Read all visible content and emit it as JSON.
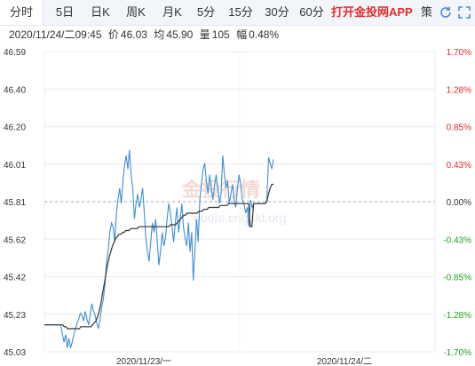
{
  "tabs": [
    {
      "label": "分时",
      "active": true
    },
    {
      "label": "5日",
      "active": false
    },
    {
      "label": "日K",
      "active": false
    },
    {
      "label": "周K",
      "active": false
    },
    {
      "label": "月K",
      "active": false
    },
    {
      "label": "5分",
      "active": false
    },
    {
      "label": "15分",
      "active": false
    },
    {
      "label": "30分",
      "active": false
    },
    {
      "label": "60分",
      "active": false
    }
  ],
  "promo_label": "打开金投网APP",
  "extra_label": "策",
  "icons": [
    "circle-arrow-icon",
    "fullscreen-icon"
  ],
  "info": {
    "datetime": "2020/11/24/二09:45",
    "price_label": "价",
    "price": "46.03",
    "avg_label": "均",
    "avg": "45.90",
    "vol_label": "量",
    "vol": "105",
    "amp_label": "幅",
    "amp": "0.48%"
  },
  "watermark": {
    "text": "金投行情",
    "url": "quote.cngold.org"
  },
  "colors": {
    "up": "#e62b2b",
    "down": "#1fa21f",
    "price_line": "#3d8fd6",
    "avg_line": "#333333",
    "grid": "#e9ecef"
  },
  "chart_data": {
    "type": "line",
    "y_left_ticks": [
      "46.59",
      "46.40",
      "46.20",
      "46.01",
      "45.81",
      "45.62",
      "45.42",
      "45.23",
      "45.03"
    ],
    "y_right_ticks": [
      "1.70%",
      "1.28%",
      "0.85%",
      "0.43%",
      "0.00%",
      "-0.43%",
      "-0.85%",
      "-1.28%",
      "-1.70%"
    ],
    "ylim": [
      45.03,
      46.59
    ],
    "prev_close": 45.81,
    "x_labels": [
      "2020/11/23/一",
      "2020/11/24/二"
    ],
    "series": [
      {
        "values": [
          45.17,
          45.17,
          45.17,
          45.17,
          45.17,
          45.17,
          45.17,
          45.17,
          45.17,
          45.17,
          45.17,
          45.12,
          45.08,
          45.12,
          45.05,
          45.1,
          45.05,
          45.08,
          45.12,
          45.15,
          45.18,
          45.2,
          45.23,
          45.22,
          45.19,
          45.24,
          45.2,
          45.17,
          45.22,
          45.28,
          45.24,
          45.22,
          45.18,
          45.15,
          45.2,
          45.26,
          45.3,
          45.38,
          45.5,
          45.56,
          45.65,
          45.7,
          45.68,
          45.6,
          45.75,
          45.82,
          45.88,
          45.8,
          45.92,
          46.0,
          46.05,
          45.98,
          46.08,
          45.95,
          45.88,
          45.72,
          45.8,
          45.85,
          45.78,
          45.82,
          45.88,
          45.76,
          45.62,
          45.55,
          45.5,
          45.6,
          45.7,
          45.65,
          45.72,
          45.6,
          45.48,
          45.55,
          45.65,
          45.58,
          45.62,
          45.72,
          45.8,
          45.75,
          45.68,
          45.6,
          45.7,
          45.78,
          45.65,
          45.72,
          45.8,
          45.68,
          45.62,
          45.58,
          45.7,
          45.55,
          45.65,
          45.4,
          45.55,
          45.72,
          45.6,
          45.82,
          45.9,
          45.98,
          46.01,
          45.92,
          45.85,
          45.95,
          45.88,
          45.82,
          45.9,
          45.95,
          45.88,
          45.8,
          45.85,
          46.05,
          45.95,
          45.88,
          45.92,
          45.8,
          45.85,
          45.9,
          45.82,
          45.78,
          45.88,
          45.95,
          45.9,
          45.82,
          45.8,
          45.75,
          45.78,
          45.68,
          45.82,
          45.78,
          45.8,
          45.8,
          45.8,
          45.8,
          45.8,
          45.8,
          45.8,
          45.8,
          45.82,
          46.04,
          46.01,
          45.98,
          46.03
        ]
      },
      {
        "values": [
          45.17,
          45.17,
          45.17,
          45.17,
          45.17,
          45.17,
          45.17,
          45.17,
          45.17,
          45.17,
          45.17,
          45.17,
          45.16,
          45.16,
          45.15,
          45.15,
          45.15,
          45.15,
          45.15,
          45.15,
          45.15,
          45.15,
          45.16,
          45.16,
          45.16,
          45.16,
          45.16,
          45.16,
          45.16,
          45.17,
          45.18,
          45.19,
          45.21,
          45.24,
          45.28,
          45.33,
          45.38,
          45.43,
          45.48,
          45.52,
          45.55,
          45.58,
          45.6,
          45.62,
          45.63,
          45.64,
          45.64,
          45.65,
          45.65,
          45.66,
          45.66,
          45.66,
          45.67,
          45.67,
          45.67,
          45.67,
          45.67,
          45.68,
          45.68,
          45.68,
          45.68,
          45.68,
          45.68,
          45.68,
          45.68,
          45.68,
          45.68,
          45.68,
          45.68,
          45.68,
          45.68,
          45.68,
          45.68,
          45.68,
          45.68,
          45.68,
          45.69,
          45.69,
          45.69,
          45.69,
          45.7,
          45.71,
          45.72,
          45.73,
          45.74,
          45.74,
          45.75,
          45.75,
          45.75,
          45.75,
          45.75,
          45.75,
          45.75,
          45.76,
          45.76,
          45.76,
          45.77,
          45.77,
          45.77,
          45.78,
          45.78,
          45.78,
          45.78,
          45.78,
          45.78,
          45.78,
          45.79,
          45.79,
          45.79,
          45.79,
          45.79,
          45.8,
          45.8,
          45.8,
          45.8,
          45.8,
          45.8,
          45.8,
          45.8,
          45.8,
          45.8,
          45.8,
          45.8,
          45.8,
          45.68,
          45.68,
          45.8,
          45.8,
          45.8,
          45.8,
          45.8,
          45.8,
          45.8,
          45.8,
          45.81,
          45.85,
          45.88,
          45.9,
          45.9
        ]
      }
    ]
  }
}
